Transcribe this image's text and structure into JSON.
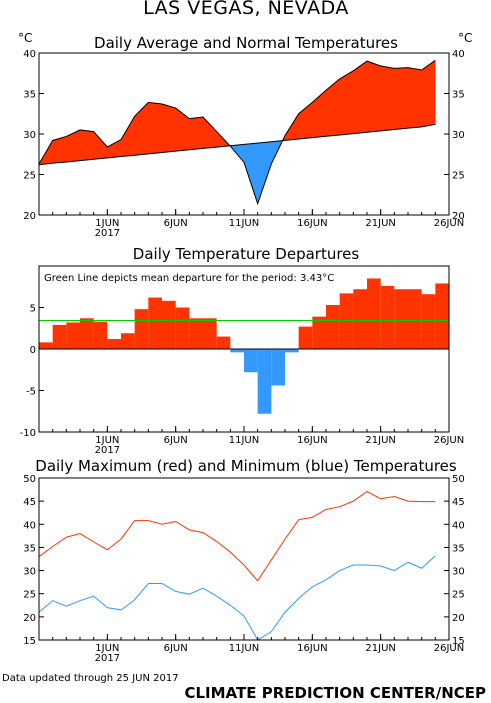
{
  "header": {
    "title": "LAS VEGAS, NEVADA",
    "updated": "Data updated through 25 JUN 2017",
    "credit": "CLIMATE PREDICTION CENTER/NCEP"
  },
  "chart_data": [
    {
      "type": "area",
      "title": "Daily Average and Normal Temperatures",
      "ylabel_left": "°C",
      "ylabel_right": "°C",
      "ylim": [
        20,
        40
      ],
      "yticks": [
        20,
        25,
        30,
        35,
        40
      ],
      "xticks": [
        {
          "day": 1,
          "label": "1JUN",
          "sublabel": "2017"
        },
        {
          "day": 6,
          "label": "6JUN"
        },
        {
          "day": 11,
          "label": "11JUN"
        },
        {
          "day": 16,
          "label": "16JUN"
        },
        {
          "day": 21,
          "label": "21JUN"
        },
        {
          "day": 26,
          "label": "26JUN"
        }
      ],
      "x_start": -4,
      "x_end": 26,
      "colors": {
        "above": "#ff3300",
        "below": "#3399ff"
      },
      "dates": [
        -4,
        -3,
        -2,
        -1,
        0,
        1,
        2,
        3,
        4,
        5,
        6,
        7,
        8,
        9,
        10,
        11,
        12,
        13,
        14,
        15,
        16,
        17,
        18,
        19,
        20,
        21,
        22,
        23,
        24,
        25
      ],
      "series": [
        {
          "name": "Average",
          "values": [
            26.3,
            29.2,
            29.7,
            30.5,
            30.3,
            28.4,
            29.3,
            32.2,
            33.9,
            33.7,
            33.2,
            31.9,
            32.1,
            30.3,
            28.5,
            26.5,
            21.4,
            26.3,
            29.8,
            32.5,
            33.9,
            35.4,
            36.8,
            37.8,
            39.0,
            38.4,
            38.1,
            38.2,
            37.9,
            39.1
          ]
        },
        {
          "name": "Normal",
          "values": [
            26.2,
            26.4,
            26.55,
            26.72,
            26.88,
            27.05,
            27.22,
            27.38,
            27.55,
            27.72,
            27.88,
            28.05,
            28.22,
            28.38,
            28.55,
            28.72,
            28.88,
            29.05,
            29.22,
            29.38,
            29.55,
            29.72,
            29.88,
            30.05,
            30.22,
            30.38,
            30.55,
            30.72,
            30.88,
            31.2
          ]
        }
      ]
    },
    {
      "type": "bar",
      "title": "Daily Temperature Departures",
      "annotation": "Green Line depicts mean departure for the period: 3.43°C",
      "mean": 3.43,
      "ylim": [
        -10,
        10
      ],
      "yticks": [
        -10,
        -5,
        0,
        5
      ],
      "xticks": [
        {
          "day": 1,
          "label": "1JUN",
          "sublabel": "2017"
        },
        {
          "day": 6,
          "label": "6JUN"
        },
        {
          "day": 11,
          "label": "11JUN"
        },
        {
          "day": 16,
          "label": "16JUN"
        },
        {
          "day": 21,
          "label": "21JUN"
        },
        {
          "day": 26,
          "label": "26JUN"
        }
      ],
      "x_start": -4,
      "x_end": 26,
      "colors": {
        "above": "#ff3300",
        "below": "#3399ff",
        "mean": "#00cc00"
      },
      "dates": [
        -4,
        -3,
        -2,
        -1,
        0,
        1,
        2,
        3,
        4,
        5,
        6,
        7,
        8,
        9,
        10,
        11,
        12,
        13,
        14,
        15,
        16,
        17,
        18,
        19,
        20,
        21,
        22,
        23,
        24,
        25
      ],
      "values": [
        0.8,
        2.9,
        3.2,
        3.7,
        3.3,
        1.2,
        1.9,
        4.8,
        6.2,
        5.8,
        5.0,
        3.7,
        3.7,
        1.5,
        -0.4,
        -2.8,
        -7.8,
        -4.4,
        -0.4,
        2.7,
        3.9,
        5.3,
        6.7,
        7.2,
        8.5,
        7.6,
        7.2,
        7.2,
        6.6,
        7.9
      ]
    },
    {
      "type": "line",
      "title": "Daily Maximum (red) and Minimum (blue) Temperatures",
      "ylim": [
        15,
        50
      ],
      "yticks": [
        15,
        20,
        25,
        30,
        35,
        40,
        45,
        50
      ],
      "xticks": [
        {
          "day": 1,
          "label": "1JUN",
          "sublabel": "2017"
        },
        {
          "day": 6,
          "label": "6JUN"
        },
        {
          "day": 11,
          "label": "11JUN"
        },
        {
          "day": 16,
          "label": "16JUN"
        },
        {
          "day": 21,
          "label": "21JUN"
        },
        {
          "day": 26,
          "label": "26JUN"
        }
      ],
      "x_start": -4,
      "x_end": 26,
      "colors": {
        "max": "#ff3300",
        "min": "#3399ff"
      },
      "dates": [
        -4,
        -3,
        -2,
        -1,
        0,
        1,
        2,
        3,
        4,
        5,
        6,
        7,
        8,
        9,
        10,
        11,
        12,
        13,
        14,
        15,
        16,
        17,
        18,
        19,
        20,
        21,
        22,
        23,
        24,
        25
      ],
      "series": [
        {
          "name": "Maximum",
          "values": [
            33.0,
            35.2,
            37.2,
            38.0,
            36.2,
            34.5,
            36.8,
            40.8,
            40.8,
            40.0,
            40.6,
            38.8,
            38.2,
            36.3,
            34.0,
            31.2,
            27.8,
            32.3,
            36.8,
            41.0,
            41.5,
            43.2,
            43.8,
            45.0,
            47.1,
            45.5,
            46.0,
            45.0,
            44.9,
            44.9
          ]
        },
        {
          "name": "Minimum",
          "values": [
            21.0,
            23.5,
            22.3,
            23.5,
            24.5,
            22.0,
            21.5,
            23.7,
            27.2,
            27.2,
            25.5,
            24.9,
            26.2,
            24.5,
            22.5,
            20.2,
            15.0,
            16.8,
            21.0,
            24.0,
            26.5,
            28.0,
            30.0,
            31.2,
            31.2,
            31.0,
            30.0,
            31.8,
            30.5,
            33.2
          ]
        }
      ]
    }
  ]
}
